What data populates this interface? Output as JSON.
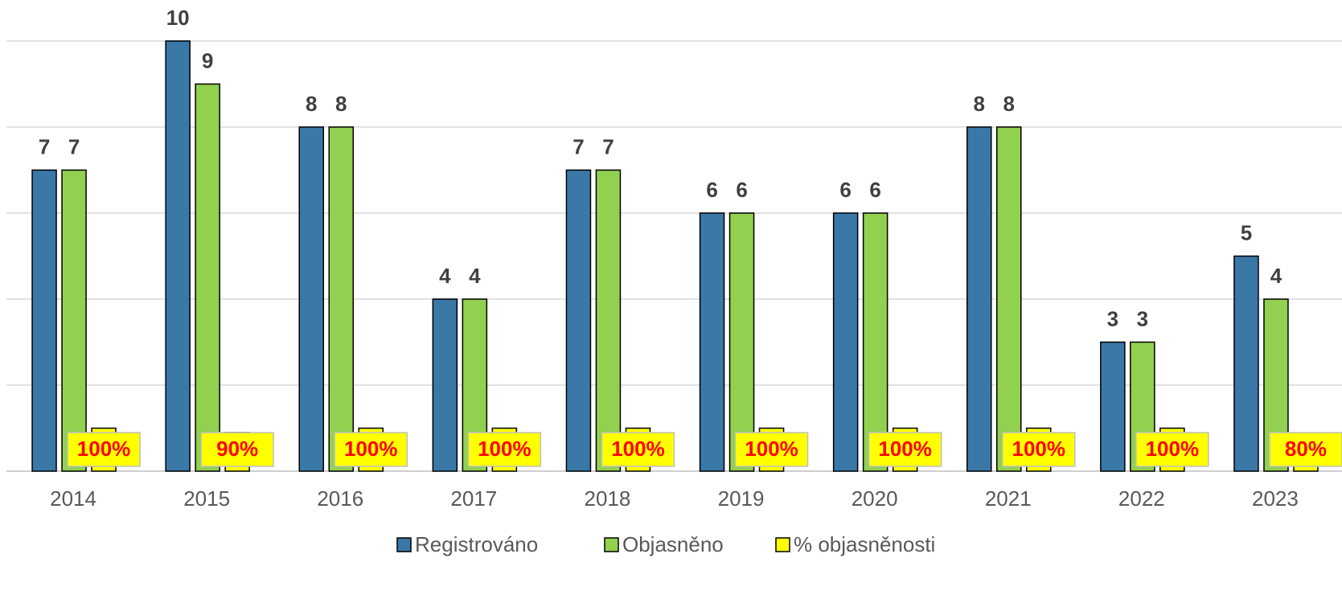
{
  "chart_data": {
    "type": "bar",
    "categories": [
      "2014",
      "2015",
      "2016",
      "2017",
      "2018",
      "2019",
      "2020",
      "2021",
      "2022",
      "2023"
    ],
    "series": [
      {
        "name": "Registrováno",
        "color": "#3a78a8",
        "values": [
          7,
          10,
          8,
          4,
          7,
          6,
          6,
          8,
          3,
          5
        ]
      },
      {
        "name": "Objasněno",
        "color": "#92d050",
        "values": [
          7,
          9,
          8,
          4,
          7,
          6,
          6,
          8,
          3,
          4
        ]
      },
      {
        "name": "% objasněnosti",
        "color": "#ffff00",
        "axis": "y2",
        "values": [
          100,
          90,
          100,
          100,
          100,
          100,
          100,
          100,
          100,
          80
        ],
        "value_labels": [
          "100%",
          "90%",
          "100%",
          "100%",
          "100%",
          "100%",
          "100%",
          "100%",
          "100%",
          "80%"
        ]
      }
    ],
    "ylim": [
      0,
      10
    ],
    "yticks": [
      0,
      2,
      4,
      6,
      8,
      10
    ],
    "y2lim": [
      0,
      1000
    ],
    "grid": true,
    "legend": "bottom"
  }
}
